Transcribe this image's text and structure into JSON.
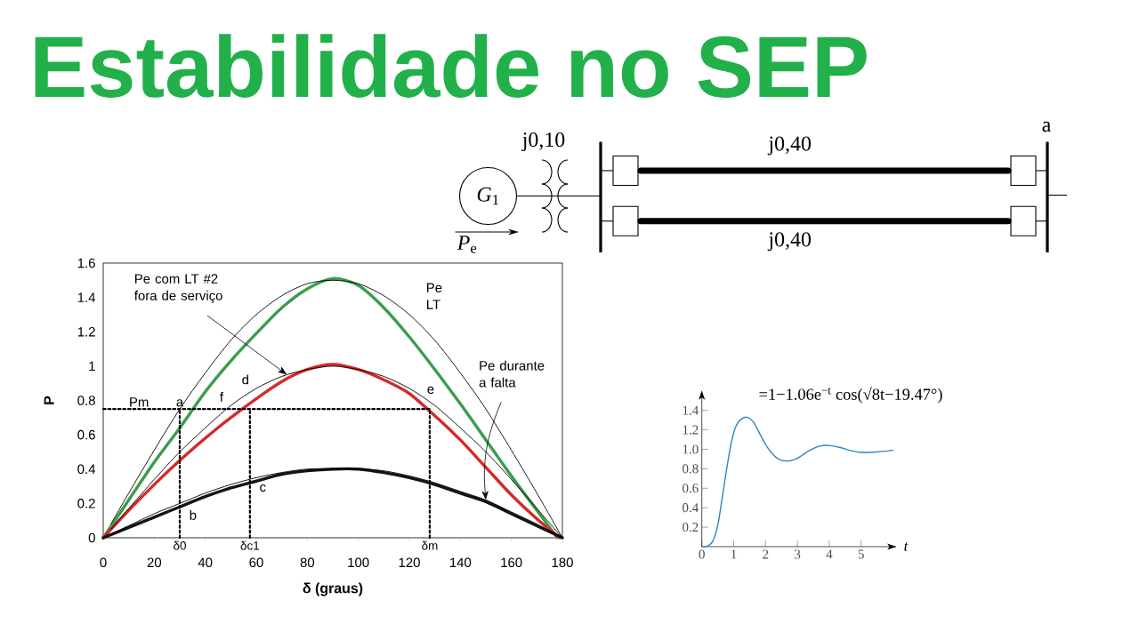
{
  "chart_data": [
    {
      "type": "line",
      "title": "Estabilidade no SEP",
      "xlabel": "δ (graus)",
      "ylabel": "P",
      "x": [
        0,
        10,
        20,
        30,
        40,
        50,
        60,
        70,
        80,
        90,
        100,
        110,
        120,
        130,
        140,
        150,
        160,
        170,
        180
      ],
      "xlim": [
        0,
        180
      ],
      "ylim": [
        0,
        1.6
      ],
      "xticks": [
        0,
        20,
        40,
        60,
        80,
        100,
        120,
        140,
        160,
        180
      ],
      "yticks": [
        0,
        0.2,
        0.4,
        0.6,
        0.8,
        1,
        1.2,
        1.4,
        1.6
      ],
      "series": [
        {
          "color": "#3a9d4a",
          "x": [
            0,
            10,
            20,
            30,
            40,
            50,
            60,
            70,
            80,
            90,
            100,
            110,
            120,
            130,
            140,
            150,
            160,
            170,
            178
          ],
          "values": [
            0,
            0.22,
            0.44,
            0.64,
            0.85,
            1.03,
            1.19,
            1.34,
            1.45,
            1.51,
            1.47,
            1.34,
            1.17,
            0.98,
            0.78,
            0.57,
            0.36,
            0.16,
            0
          ]
        },
        {
          "color": "#d42a2a",
          "x": [
            0,
            10,
            20,
            30,
            40,
            50,
            60,
            70,
            80,
            90,
            100,
            110,
            120,
            130,
            140,
            150,
            160,
            170,
            179
          ],
          "values": [
            0,
            0.16,
            0.31,
            0.45,
            0.58,
            0.7,
            0.81,
            0.91,
            0.98,
            1.01,
            0.98,
            0.92,
            0.84,
            0.71,
            0.57,
            0.41,
            0.25,
            0.11,
            0
          ]
        },
        {
          "color": "#141414",
          "values": [
            0,
            0.06,
            0.12,
            0.18,
            0.24,
            0.29,
            0.33,
            0.37,
            0.39,
            0.4,
            0.4,
            0.38,
            0.35,
            0.31,
            0.26,
            0.21,
            0.14,
            0.07,
            0
          ]
        },
        {
          "color": "#000000",
          "x": [
            3,
            10,
            20,
            30,
            40,
            50,
            60,
            70,
            80,
            90,
            100,
            110,
            120,
            130,
            140,
            150,
            160,
            170,
            180
          ],
          "values": [
            0.08,
            0.26,
            0.51,
            0.75,
            0.96,
            1.15,
            1.3,
            1.41,
            1.48,
            1.5,
            1.48,
            1.41,
            1.3,
            1.15,
            0.96,
            0.75,
            0.51,
            0.26,
            0
          ]
        },
        {
          "color": "#000000",
          "x": [
            3,
            10,
            20,
            30,
            40,
            50,
            60,
            70,
            80,
            90,
            100,
            110,
            120,
            130,
            140,
            150,
            160,
            170,
            180
          ],
          "values": [
            0.05,
            0.17,
            0.34,
            0.5,
            0.64,
            0.77,
            0.87,
            0.94,
            0.98,
            1.0,
            0.98,
            0.94,
            0.87,
            0.77,
            0.64,
            0.5,
            0.34,
            0.17,
            0
          ]
        },
        {
          "color": "#000000",
          "x": [
            3,
            10,
            20,
            30,
            40,
            50,
            60,
            70,
            80,
            90,
            100,
            110,
            120,
            130,
            140,
            150,
            160,
            170,
            180
          ],
          "values": [
            0.02,
            0.07,
            0.14,
            0.2,
            0.26,
            0.31,
            0.35,
            0.38,
            0.4,
            0.4,
            0.4,
            0.39,
            0.36,
            0.32,
            0.27,
            0.22,
            0.15,
            0.08,
            0
          ]
        },
        {
          "color": "#000000",
          "line_style": "dotted",
          "x": [
            0,
            128
          ],
          "values": [
            0.75,
            0.75
          ]
        },
        {
          "color": "#000000",
          "line_style": "dotted",
          "x": [
            30,
            30
          ],
          "values": [
            0,
            0.75
          ]
        },
        {
          "color": "#000000",
          "line_style": "dotted",
          "x": [
            57.5,
            57.5
          ],
          "values": [
            0,
            0.75
          ]
        },
        {
          "color": "#000000",
          "line_style": "dotted",
          "x": [
            128,
            128
          ],
          "values": [
            0,
            0.75
          ]
        }
      ],
      "annotations": [
        {
          "text": "Pe com LT #2 fora de serviço",
          "x": 72,
          "y": 0.95
        },
        {
          "text": "Pe durante a falta",
          "x": 150,
          "y": 0.22
        },
        "Pe LT",
        {
          "text": "Pm",
          "x": 14,
          "y": 0.75
        },
        {
          "text": "a",
          "x": 30,
          "y": 0.75
        },
        {
          "text": "b",
          "x": 30,
          "y": 0.18
        },
        {
          "text": "c",
          "x": 57.5,
          "y": 0.33
        },
        {
          "text": "d",
          "x": 57.5,
          "y": 0.84
        },
        {
          "text": "e",
          "x": 128,
          "y": 0.79
        },
        {
          "text": "f",
          "x": 49,
          "y": 0.75
        },
        {
          "text": "δ0",
          "x": 30,
          "y": 0
        },
        {
          "text": "δc1",
          "x": 57.5,
          "y": 0
        },
        {
          "text": "δm",
          "x": 128,
          "y": 0
        }
      ]
    },
    {
      "type": "other",
      "annotations": [
        "j0,10",
        "j0,40",
        "j0,40",
        "*G*$_{1}$",
        "*P*$_{e}$",
        "a"
      ]
    },
    {
      "type": "line",
      "title": "=1−1.06e$^{−t}$ cos(√8t−19.47°)",
      "xlabel": "t",
      "color": "#2e86c1",
      "x": [
        0,
        0.2,
        0.35,
        0.5,
        0.64,
        0.78,
        0.92,
        1.06,
        1.2,
        1.4,
        1.62,
        1.85,
        2.08,
        2.36,
        2.69,
        3.01,
        3.34,
        3.67,
        3.99,
        4.32,
        4.64,
        4.97,
        5.34,
        5.71,
        6.0
      ],
      "values": [
        0,
        0.01,
        0.06,
        0.22,
        0.5,
        0.8,
        1.06,
        1.23,
        1.3,
        1.33,
        1.28,
        1.14,
        1.01,
        0.91,
        0.88,
        0.91,
        0.98,
        1.03,
        1.04,
        1.02,
        0.99,
        0.97,
        0.97,
        0.98,
        0.99
      ],
      "xlim": [
        0,
        6.1
      ],
      "ylim": [
        0,
        1.6
      ],
      "xticks": [
        0,
        1,
        2,
        3,
        4,
        5
      ],
      "yticks": [
        0.2,
        0.4,
        0.6,
        0.8,
        {
          "value": 1,
          "label": "1.0"
        },
        1.2,
        1.4
      ]
    }
  ]
}
